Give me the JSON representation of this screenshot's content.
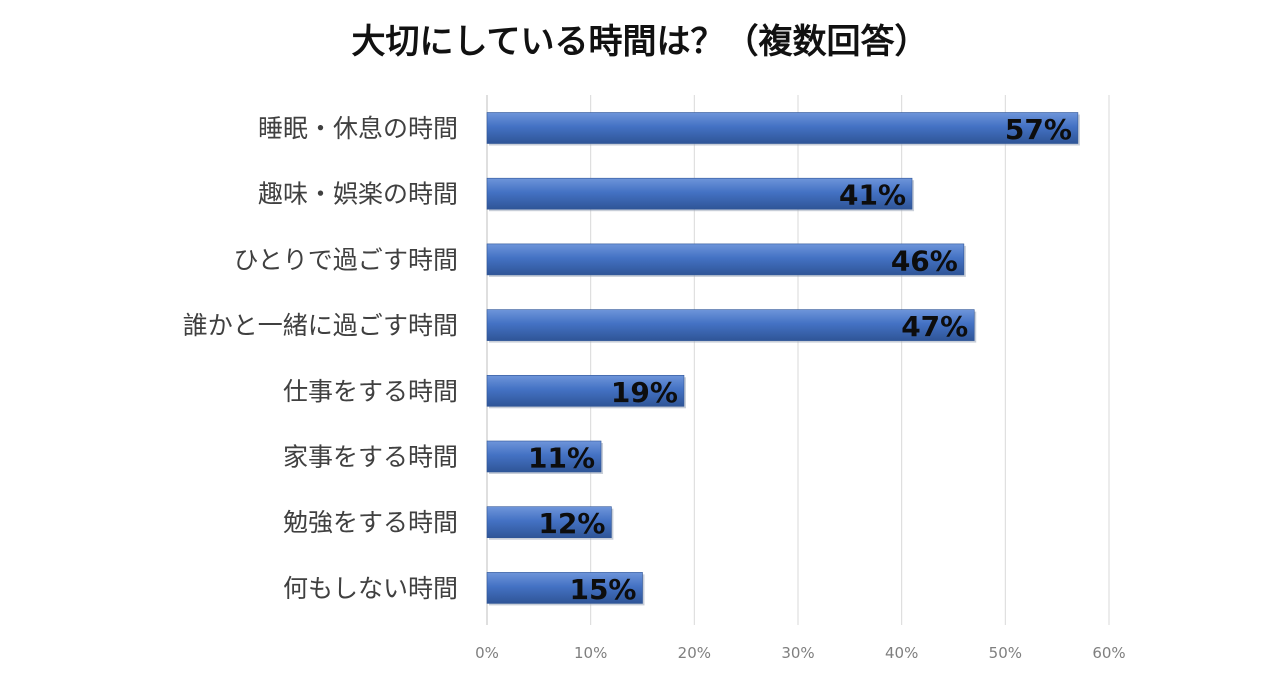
{
  "chart_data": {
    "type": "bar",
    "orientation": "horizontal",
    "title": "大切にしている時間は？（複数回答）",
    "categories": [
      "睡眠・休息の時間",
      "趣味・娯楽の時間",
      "ひとりで過ごす時間",
      "誰かと一緒に過ごす時間",
      "仕事をする時間",
      "家事をする時間",
      "勉強をする時間",
      "何もしない時間"
    ],
    "values": [
      57,
      41,
      46,
      47,
      19,
      11,
      12,
      15
    ],
    "data_labels": [
      "57%",
      "41%",
      "46%",
      "47%",
      "19%",
      "11%",
      "12%",
      "15%"
    ],
    "x_ticks": [
      0,
      10,
      20,
      30,
      40,
      50,
      60
    ],
    "x_tick_labels": [
      "0%",
      "10%",
      "20%",
      "30%",
      "40%",
      "50%",
      "60%"
    ],
    "xlim": [
      0,
      60
    ],
    "grid": true,
    "legend": "none",
    "bar_color": "#4472C4",
    "bar_color_dark": "#2F5597"
  }
}
